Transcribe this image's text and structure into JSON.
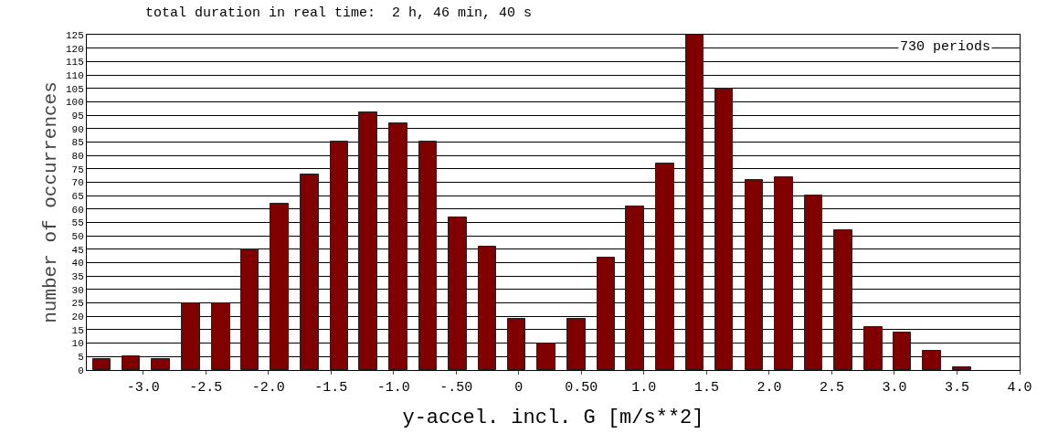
{
  "chart_data": {
    "type": "histogram",
    "title": "total duration in real time:  2 h, 46 min, 40 s",
    "xlabel": "y-accel. incl. G [m/s**2]",
    "ylabel": "number of occurrences",
    "annotations": [
      "730 periods"
    ],
    "bins": [
      -3.45,
      -3.21,
      -2.98,
      -2.74,
      -2.5,
      -2.26,
      -2.03,
      -1.79,
      -1.55,
      -1.32,
      -1.08,
      -0.84,
      -0.61,
      -0.37,
      -0.13,
      0.1,
      0.34,
      0.58,
      0.81,
      1.05,
      1.29,
      1.52,
      1.76,
      2.0,
      2.24,
      2.47,
      2.71,
      2.95,
      3.18,
      3.42,
      3.66
    ],
    "values": [
      4,
      5,
      4,
      25,
      25,
      45,
      62,
      73,
      85,
      96,
      92,
      85,
      57,
      46,
      19,
      10,
      19,
      42,
      61,
      77,
      125,
      105,
      71,
      72,
      65,
      52,
      16,
      14,
      7,
      1
    ],
    "color": "#800000",
    "xlim": [
      -3.45,
      4.0
    ],
    "xticks": [
      {
        "value": -3.0,
        "label": "-3.0"
      },
      {
        "value": -2.5,
        "label": "-2.5"
      },
      {
        "value": -2.0,
        "label": "-2.0"
      },
      {
        "value": -1.5,
        "label": "-1.5"
      },
      {
        "value": -1.0,
        "label": "-1.0"
      },
      {
        "value": -0.5,
        "label": "-.50"
      },
      0,
      {
        "value": 0.5,
        "label": "0.50"
      },
      {
        "value": 1.0,
        "label": "1.0"
      },
      1.5,
      {
        "value": 2.0,
        "label": "2.0"
      },
      2.5,
      {
        "value": 3.0,
        "label": "3.0"
      },
      3.5,
      {
        "value": 4.0,
        "label": "4.0"
      }
    ],
    "ylim": [
      0,
      125
    ],
    "yticks": [
      0,
      5,
      10,
      15,
      20,
      25,
      30,
      35,
      40,
      45,
      50,
      55,
      60,
      65,
      70,
      75,
      80,
      85,
      90,
      95,
      100,
      105,
      110,
      115,
      120,
      125
    ],
    "grid": "y"
  }
}
